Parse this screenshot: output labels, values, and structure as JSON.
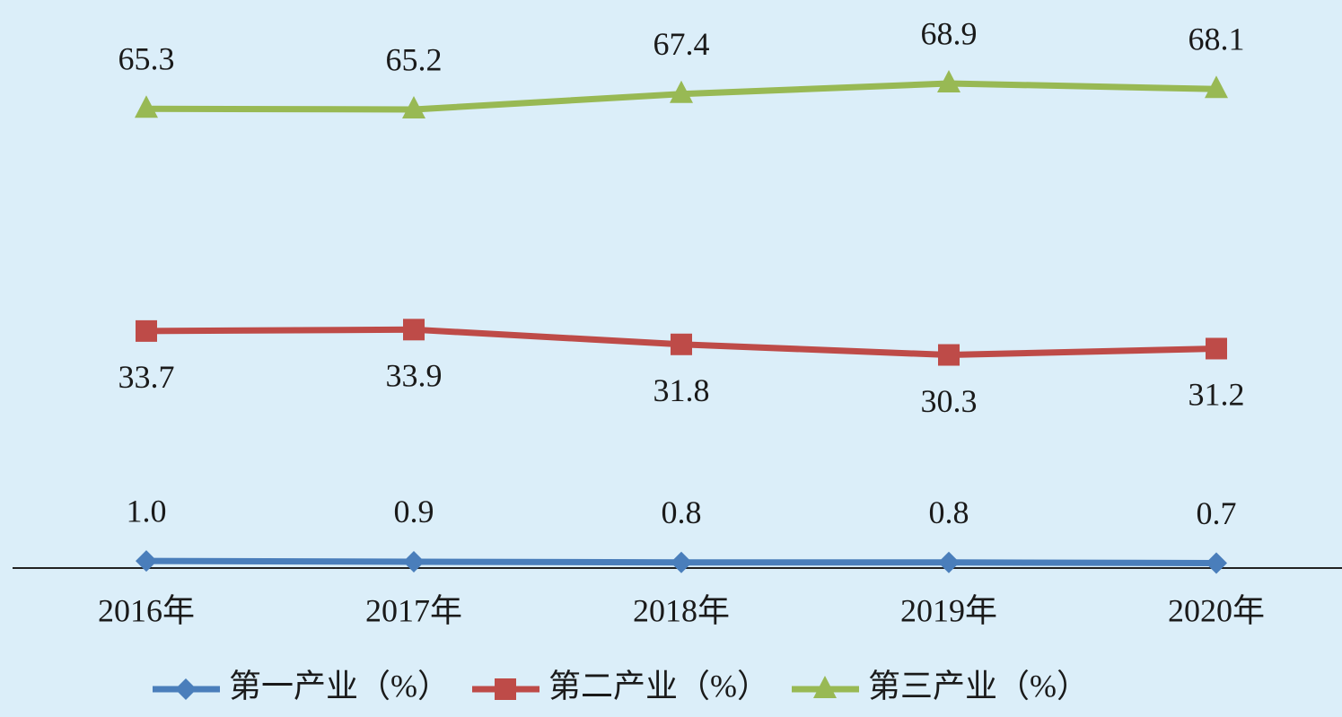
{
  "chart_data": {
    "type": "line",
    "categories": [
      "2016年",
      "2017年",
      "2018年",
      "2019年",
      "2020年"
    ],
    "series": [
      {
        "name": "第一产业（%）",
        "color": "#4a7ebb",
        "marker": "diamond",
        "label_position": "above",
        "values": [
          1.0,
          0.9,
          0.8,
          0.8,
          0.7
        ],
        "value_labels": [
          "1.0",
          "0.9",
          "0.8",
          "0.8",
          "0.7"
        ]
      },
      {
        "name": "第二产业（%）",
        "color": "#be4b48",
        "marker": "square",
        "label_position": "below",
        "values": [
          33.7,
          33.9,
          31.8,
          30.3,
          31.2
        ],
        "value_labels": [
          "33.7",
          "33.9",
          "31.8",
          "30.3",
          "31.2"
        ]
      },
      {
        "name": "第三产业（%）",
        "color": "#98b954",
        "marker": "triangle",
        "label_position": "above",
        "values": [
          65.3,
          65.2,
          67.4,
          68.9,
          68.1
        ],
        "value_labels": [
          "65.3",
          "65.2",
          "67.4",
          "68.9",
          "68.1"
        ]
      }
    ],
    "ylim": [
      0,
      80
    ],
    "legend": "bottom"
  }
}
